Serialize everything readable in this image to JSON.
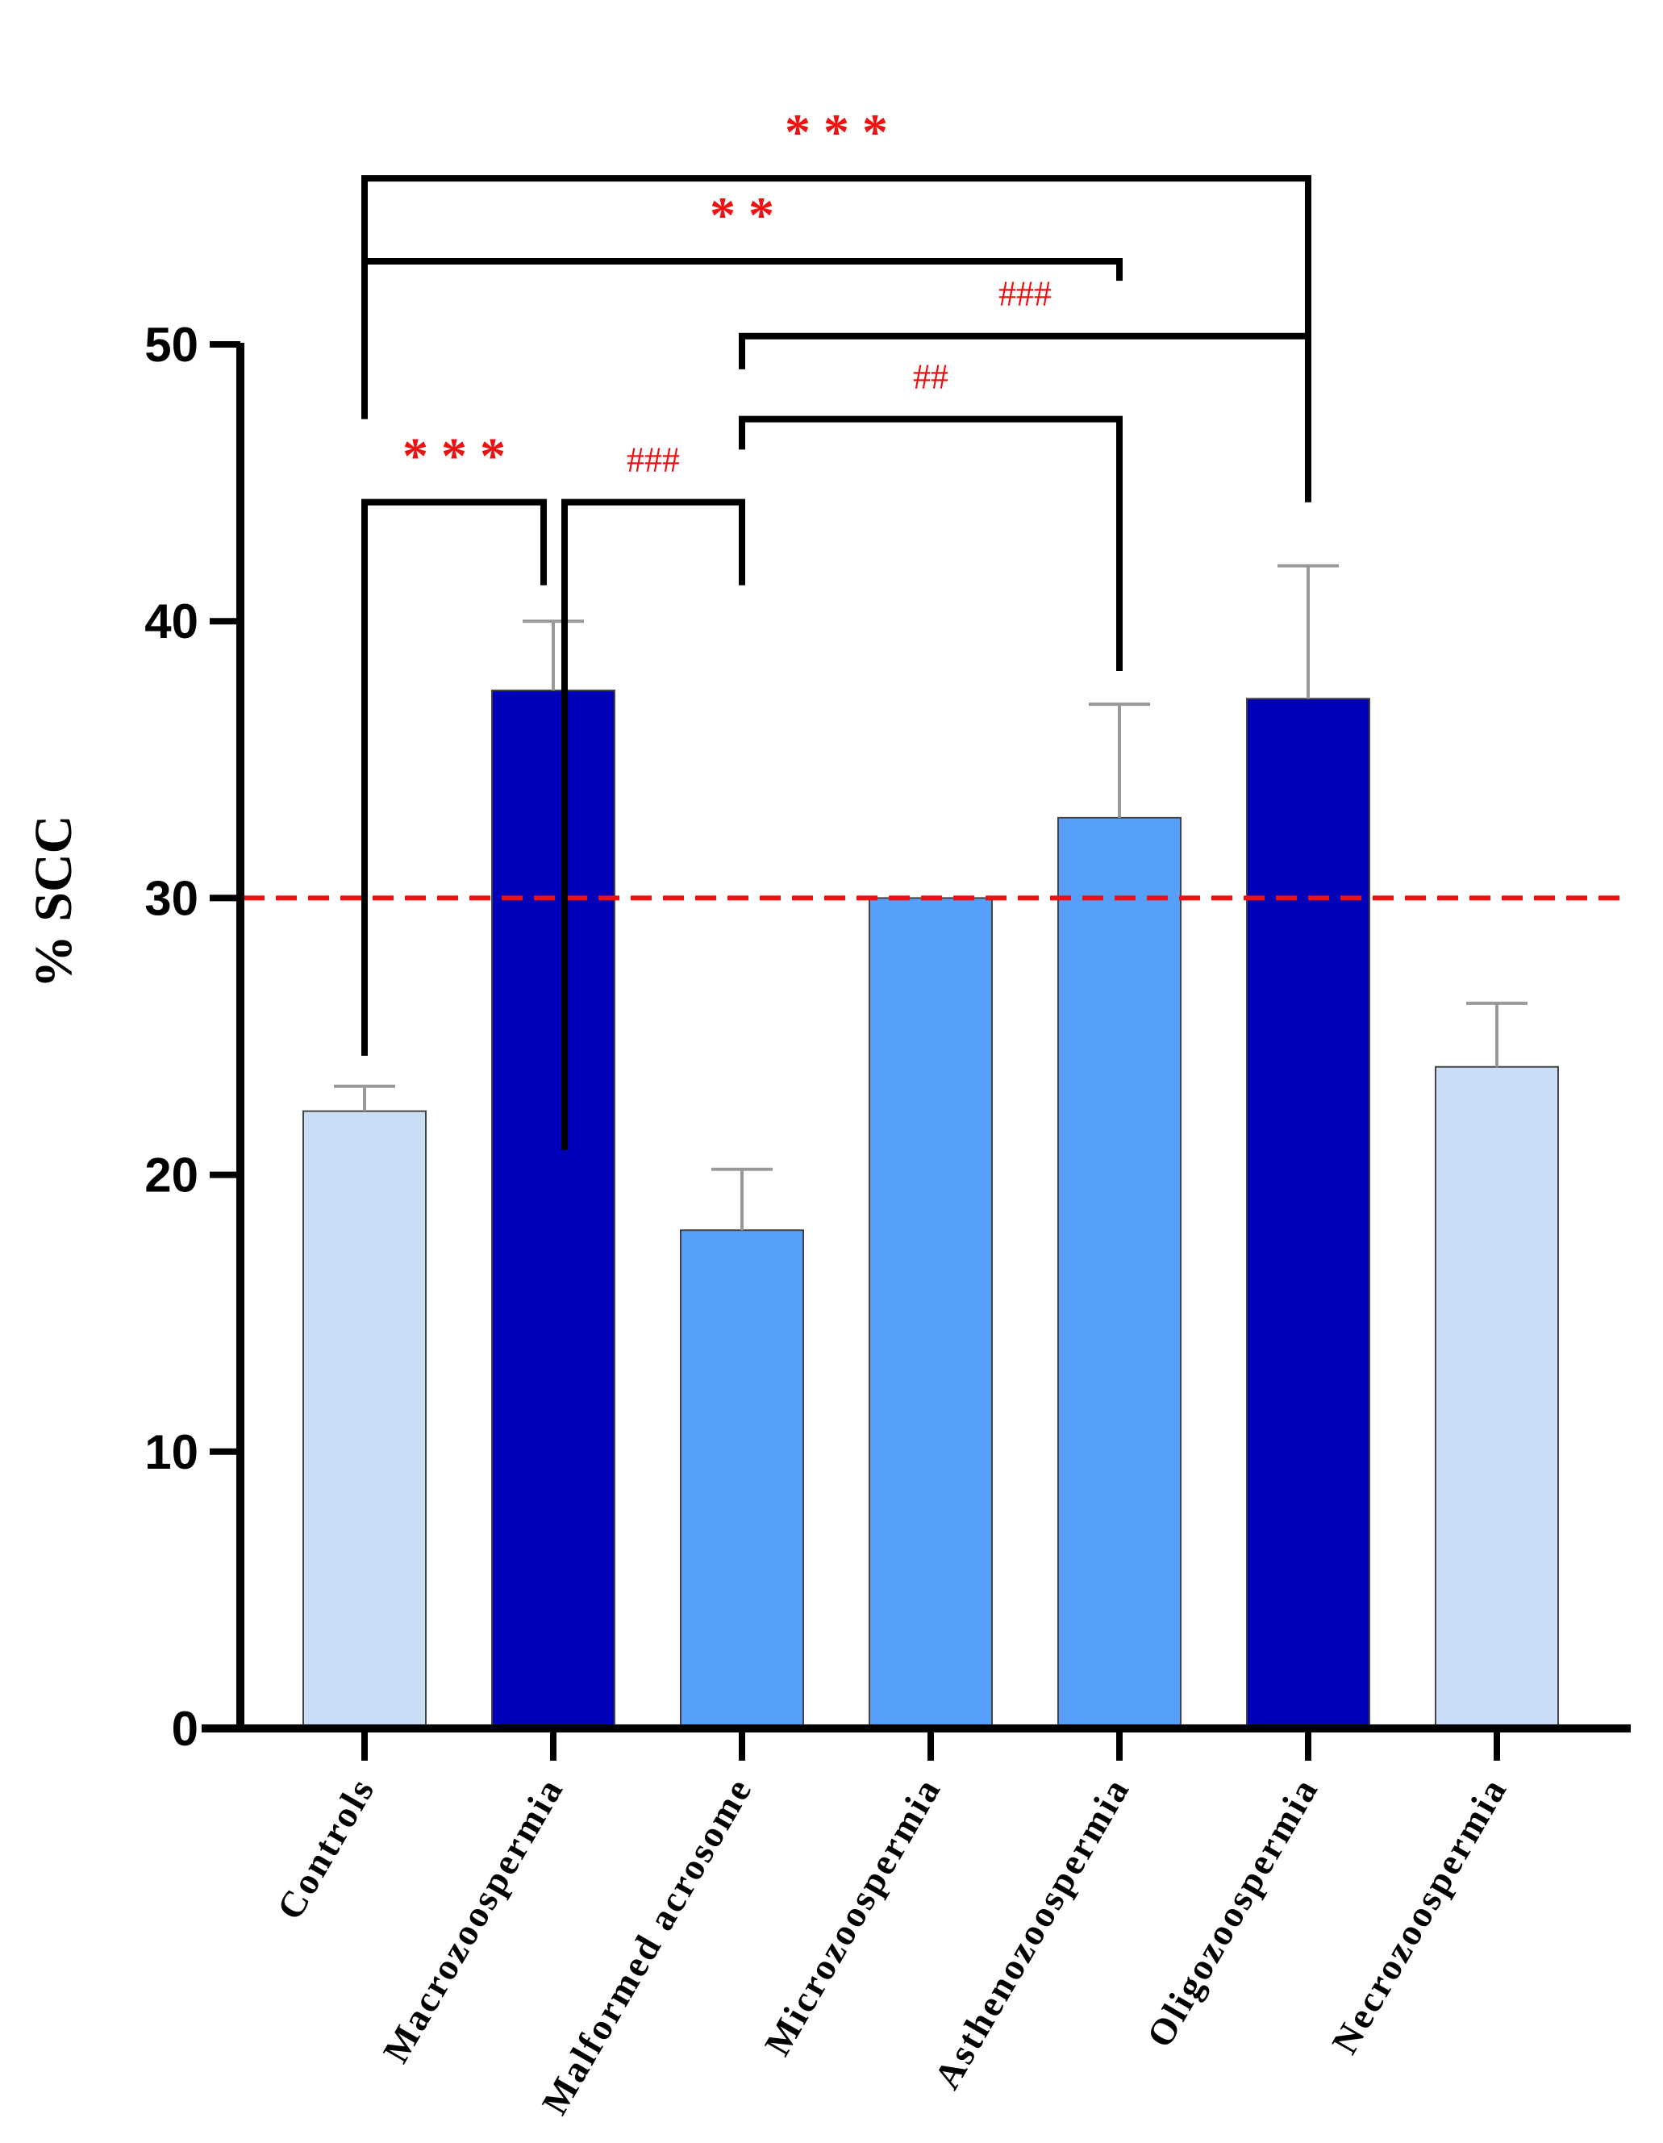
{
  "chart_data": {
    "type": "bar",
    "title": "",
    "xlabel": "",
    "ylabel": "% SCC",
    "ylim": [
      0,
      50
    ],
    "yticks": [
      0,
      10,
      20,
      30,
      40,
      50
    ],
    "ytick_labels": [
      "0",
      "10",
      "20",
      "30",
      "40",
      "50"
    ],
    "grid": false,
    "categories": [
      "Controls",
      "Macrozoospermia",
      "Malformed acrosome",
      "Microzoospermia",
      "Asthenozoospermia",
      "Oligozoospermia",
      "Necrozoospermia"
    ],
    "values": [
      22.3,
      37.5,
      18.0,
      30.0,
      32.9,
      37.2,
      23.9
    ],
    "errors": [
      0.9,
      2.5,
      2.2,
      0.0,
      4.1,
      4.8,
      2.3
    ],
    "bar_colors": [
      "#c9ddf7",
      "#0000bb",
      "#56a0fb",
      "#56a0fb",
      "#56a0fb",
      "#0000bb",
      "#c9ddf7"
    ],
    "error_bar_color": "#999999",
    "reference_line": {
      "value": 30,
      "color": "#ee1111",
      "style": "dashed"
    },
    "comparisons": [
      {
        "from": 0,
        "to": 5,
        "label": "* * *",
        "kind": "star",
        "color": "#ee1111",
        "bracket_level": 56
      },
      {
        "from": 0,
        "to": 4,
        "label": "* *",
        "kind": "star",
        "color": "#ee1111",
        "bracket_level": 53
      },
      {
        "from": 2,
        "to": 5,
        "label": "###",
        "kind": "hash",
        "color": "#ee1111",
        "bracket_level": 50.3
      },
      {
        "from": 2,
        "to": 4,
        "label": "##",
        "kind": "hash",
        "color": "#ee1111",
        "bracket_level": 47.3
      },
      {
        "from": 0,
        "to": 1,
        "label": "* * *",
        "kind": "star",
        "color": "#ee1111",
        "bracket_level": 44.3
      },
      {
        "from": 1,
        "to": 2,
        "label": "###",
        "kind": "hash",
        "color": "#ee1111",
        "bracket_level": 44.3
      }
    ]
  }
}
